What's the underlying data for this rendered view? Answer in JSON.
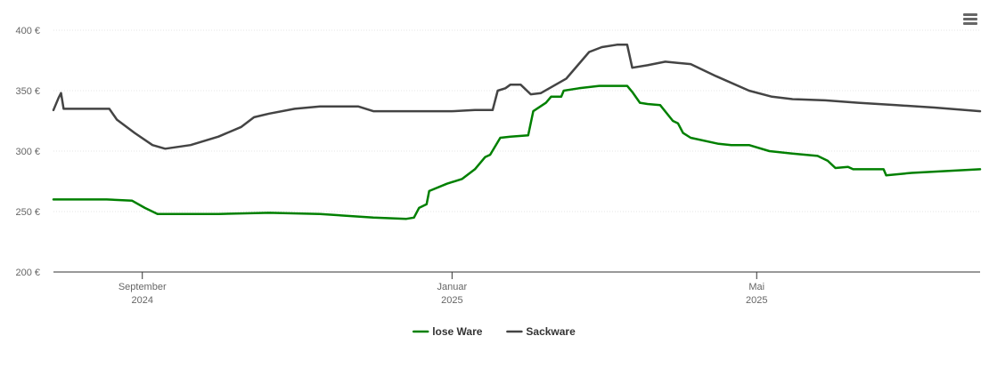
{
  "chart_data": {
    "type": "line",
    "title": "",
    "xlabel": "",
    "ylabel": "",
    "y_unit": "€",
    "ylim": [
      200,
      400
    ],
    "yticks": [
      200,
      250,
      300,
      350,
      400
    ],
    "ytick_labels": [
      "200 €",
      "250 €",
      "300 €",
      "350 €",
      "400 €"
    ],
    "xlim": [
      "2024-07-28",
      "2025-07-28"
    ],
    "xticks": [
      {
        "date": "2024-09-01",
        "month": "September",
        "year": "2024"
      },
      {
        "date": "2025-01-01",
        "month": "Januar",
        "year": "2025"
      },
      {
        "date": "2025-05-01",
        "month": "Mai",
        "year": "2025"
      }
    ],
    "grid": "horizontal",
    "legend_position": "bottom-center",
    "series": [
      {
        "name": "lose Ware",
        "color": "#008000",
        "points": [
          [
            "2024-07-28",
            260
          ],
          [
            "2024-08-08",
            260
          ],
          [
            "2024-08-18",
            260
          ],
          [
            "2024-08-28",
            259
          ],
          [
            "2024-09-02",
            253
          ],
          [
            "2024-09-07",
            248
          ],
          [
            "2024-09-20",
            248
          ],
          [
            "2024-10-01",
            248
          ],
          [
            "2024-10-21",
            249
          ],
          [
            "2024-11-10",
            248
          ],
          [
            "2024-12-01",
            245
          ],
          [
            "2024-12-14",
            244
          ],
          [
            "2024-12-17",
            245
          ],
          [
            "2024-12-19",
            253
          ],
          [
            "2024-12-22",
            256
          ],
          [
            "2024-12-23",
            267
          ],
          [
            "2024-12-30",
            273
          ],
          [
            "2025-01-05",
            277
          ],
          [
            "2025-01-10",
            285
          ],
          [
            "2025-01-14",
            295
          ],
          [
            "2025-01-16",
            297
          ],
          [
            "2025-01-20",
            311
          ],
          [
            "2025-01-24",
            312
          ],
          [
            "2025-01-31",
            313
          ],
          [
            "2025-02-02",
            333
          ],
          [
            "2025-02-07",
            340
          ],
          [
            "2025-02-09",
            345
          ],
          [
            "2025-02-13",
            345
          ],
          [
            "2025-02-14",
            350
          ],
          [
            "2025-02-20",
            352
          ],
          [
            "2025-02-28",
            354
          ],
          [
            "2025-03-11",
            354
          ],
          [
            "2025-03-13",
            349
          ],
          [
            "2025-03-16",
            340
          ],
          [
            "2025-03-19",
            339
          ],
          [
            "2025-03-24",
            338
          ],
          [
            "2025-03-29",
            325
          ],
          [
            "2025-03-31",
            323
          ],
          [
            "2025-04-02",
            315
          ],
          [
            "2025-04-05",
            311
          ],
          [
            "2025-04-16",
            306
          ],
          [
            "2025-04-21",
            305
          ],
          [
            "2025-04-28",
            305
          ],
          [
            "2025-05-06",
            300
          ],
          [
            "2025-05-15",
            298
          ],
          [
            "2025-05-25",
            296
          ],
          [
            "2025-05-29",
            292
          ],
          [
            "2025-06-01",
            286
          ],
          [
            "2025-06-06",
            287
          ],
          [
            "2025-06-08",
            285
          ],
          [
            "2025-06-20",
            285
          ],
          [
            "2025-06-21",
            280
          ],
          [
            "2025-07-01",
            282
          ],
          [
            "2025-07-28",
            285
          ]
        ]
      },
      {
        "name": "Sackware",
        "color": "#444444",
        "points": [
          [
            "2024-07-28",
            334
          ],
          [
            "2024-07-30",
            344
          ],
          [
            "2024-07-31",
            348
          ],
          [
            "2024-08-01",
            335
          ],
          [
            "2024-08-08",
            335
          ],
          [
            "2024-08-19",
            335
          ],
          [
            "2024-08-22",
            326
          ],
          [
            "2024-08-29",
            315
          ],
          [
            "2024-09-05",
            305
          ],
          [
            "2024-09-10",
            302
          ],
          [
            "2024-09-20",
            305
          ],
          [
            "2024-10-01",
            312
          ],
          [
            "2024-10-10",
            320
          ],
          [
            "2024-10-15",
            328
          ],
          [
            "2024-10-21",
            331
          ],
          [
            "2024-10-31",
            335
          ],
          [
            "2024-11-10",
            337
          ],
          [
            "2024-11-25",
            337
          ],
          [
            "2024-12-01",
            333
          ],
          [
            "2024-12-15",
            333
          ],
          [
            "2025-01-01",
            333
          ],
          [
            "2025-01-10",
            334
          ],
          [
            "2025-01-17",
            334
          ],
          [
            "2025-01-19",
            350
          ],
          [
            "2025-01-22",
            352
          ],
          [
            "2025-01-24",
            355
          ],
          [
            "2025-01-28",
            355
          ],
          [
            "2025-02-01",
            347
          ],
          [
            "2025-02-05",
            348
          ],
          [
            "2025-02-15",
            360
          ],
          [
            "2025-02-24",
            382
          ],
          [
            "2025-03-01",
            386
          ],
          [
            "2025-03-07",
            388
          ],
          [
            "2025-03-11",
            388
          ],
          [
            "2025-03-13",
            369
          ],
          [
            "2025-03-19",
            371
          ],
          [
            "2025-03-26",
            374
          ],
          [
            "2025-04-05",
            372
          ],
          [
            "2025-04-15",
            362
          ],
          [
            "2025-04-28",
            350
          ],
          [
            "2025-05-07",
            345
          ],
          [
            "2025-05-15",
            343
          ],
          [
            "2025-05-28",
            342
          ],
          [
            "2025-06-10",
            340
          ],
          [
            "2025-06-25",
            338
          ],
          [
            "2025-07-10",
            336
          ],
          [
            "2025-07-28",
            333
          ]
        ]
      }
    ]
  },
  "ui": {
    "menu_icon": "hamburger-menu-icon",
    "grid_color": "#e6e6e6",
    "axis_color": "#333333"
  }
}
